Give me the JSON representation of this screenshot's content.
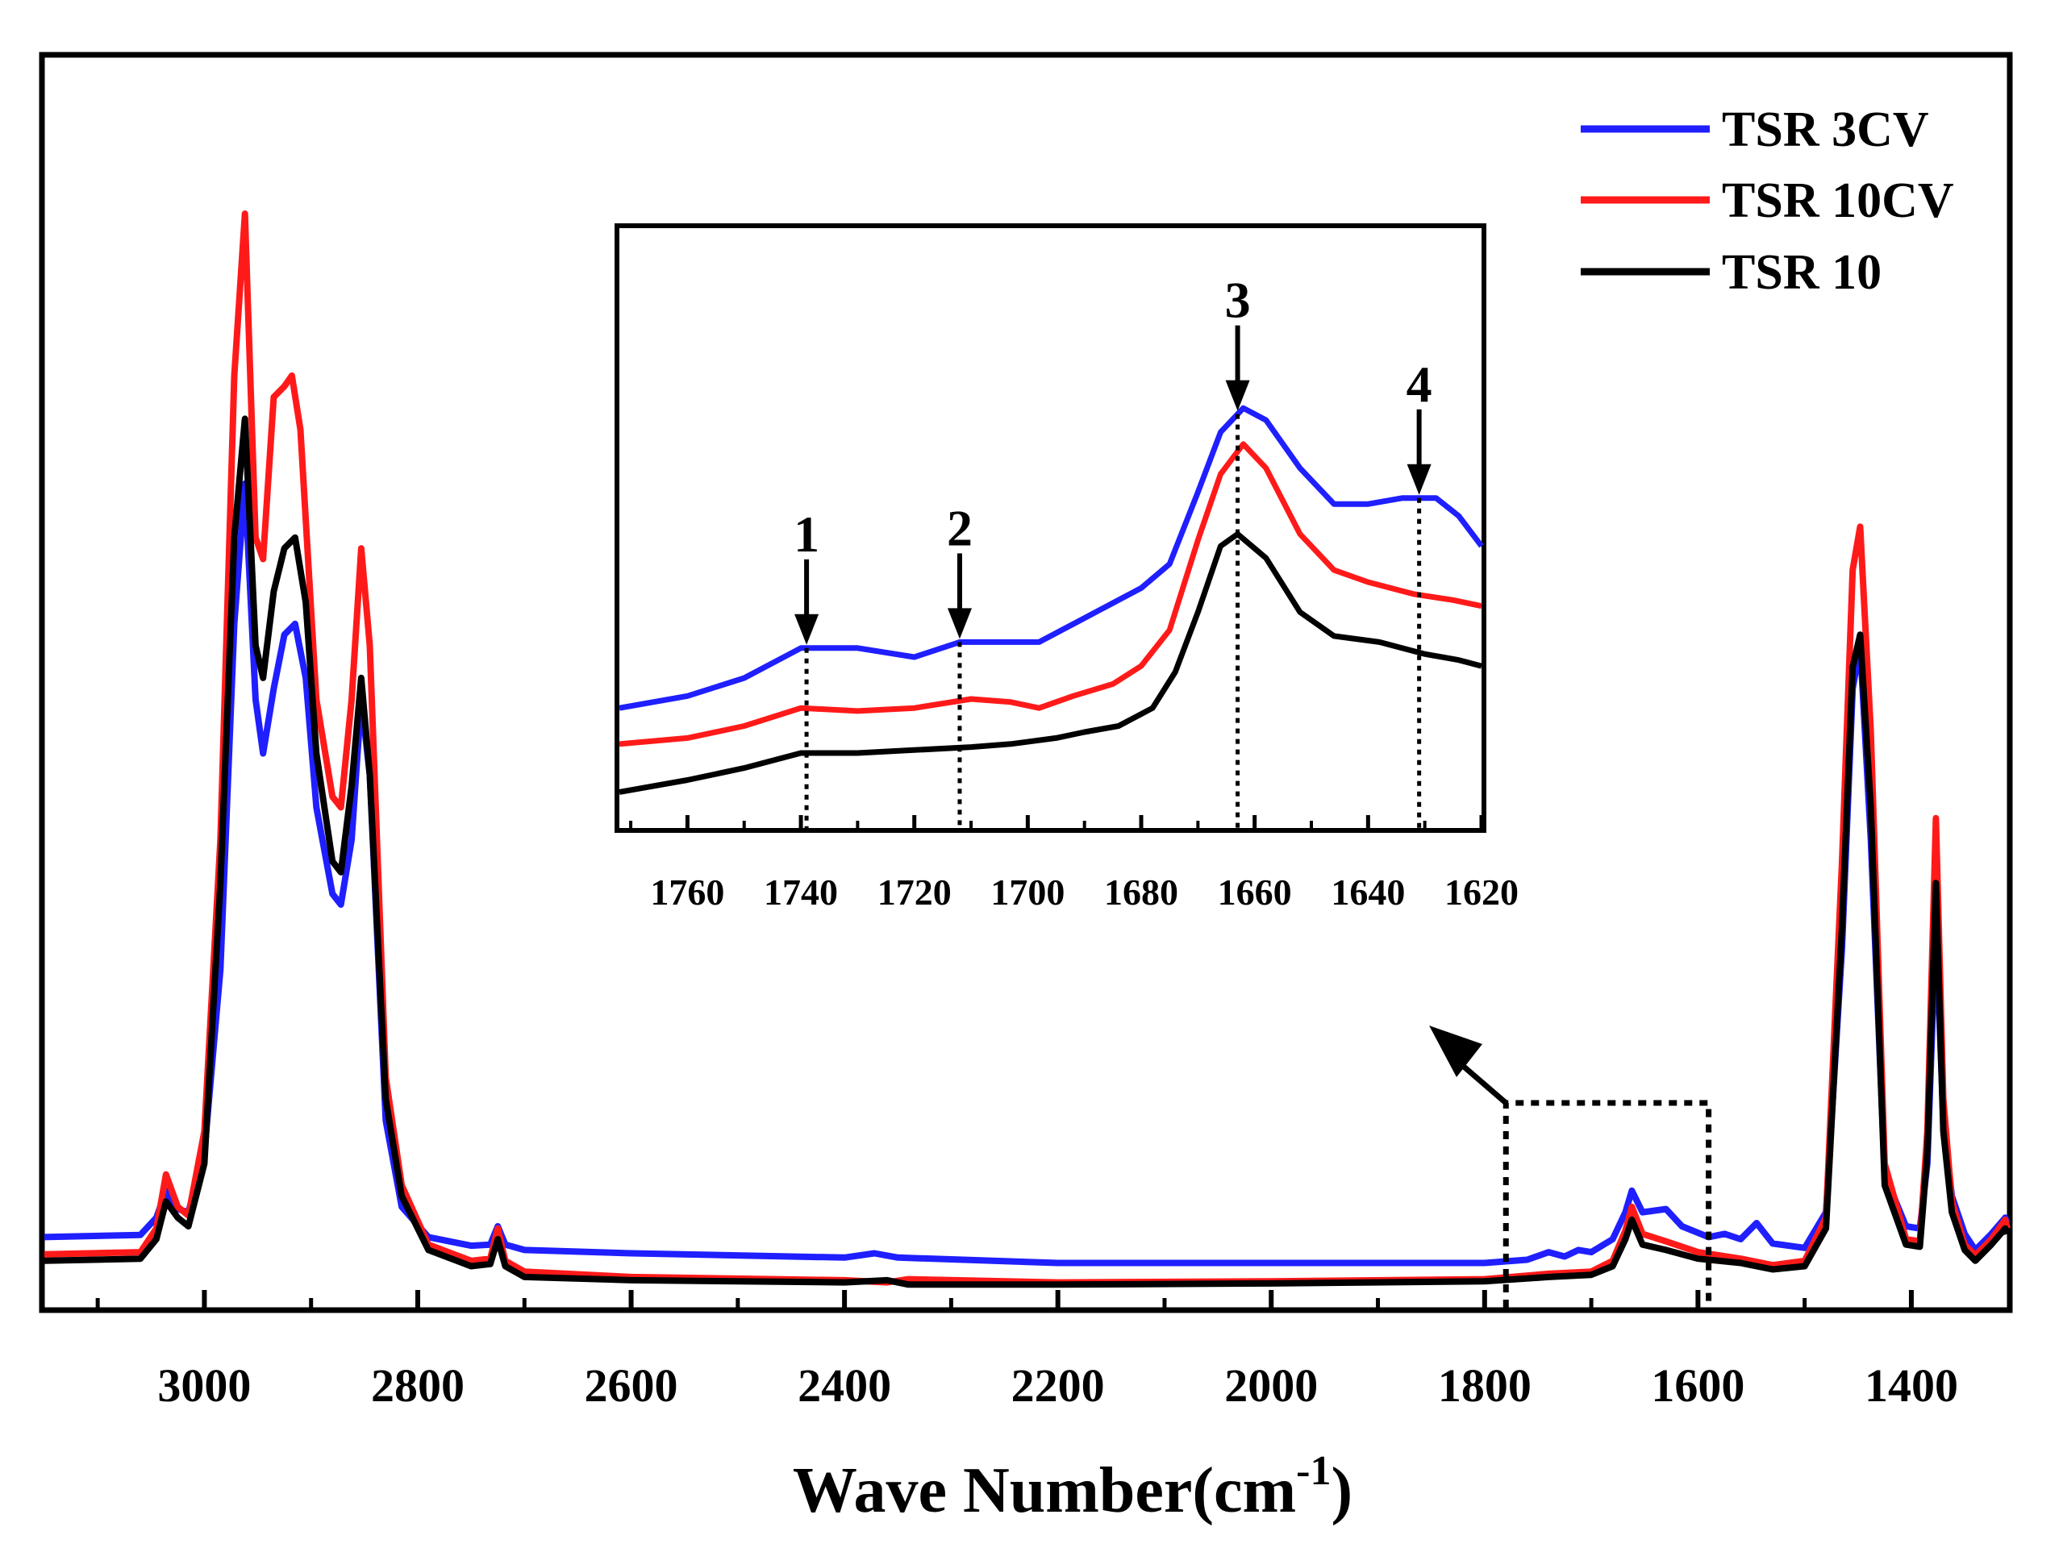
{
  "chart_data": {
    "type": "line",
    "title": "",
    "xlabel": "Wave Number",
    "xlabel_unit": "cm",
    "xlabel_exponent": "-1",
    "xlabel_close": ")",
    "xlabel_open": "(",
    "ylabel": "",
    "x_reversed": true,
    "xlim": [
      3150,
      1310
    ],
    "ylim": [
      0,
      1.0
    ],
    "xticks": [
      3000,
      2800,
      2600,
      2400,
      2200,
      2000,
      1800,
      1600,
      1400
    ],
    "legend": {
      "position": "top-right",
      "entries": [
        "TSR 3CV",
        "TSR 10CV",
        "TSR 10"
      ]
    },
    "colors": {
      "TSR 3CV": "#1f1fff",
      "TSR 10CV": "#ff1a1a",
      "TSR 10": "#000000"
    },
    "series": [
      {
        "name": "TSR 3CV",
        "color": "#1f1fff",
        "points": [
          [
            3150,
            0.052
          ],
          [
            3060,
            0.054
          ],
          [
            3045,
            0.07
          ],
          [
            3036,
            0.095
          ],
          [
            3025,
            0.078
          ],
          [
            3015,
            0.075
          ],
          [
            3000,
            0.13
          ],
          [
            2985,
            0.3
          ],
          [
            2972,
            0.62
          ],
          [
            2962,
            0.75
          ],
          [
            2952,
            0.55
          ],
          [
            2945,
            0.5
          ],
          [
            2935,
            0.56
          ],
          [
            2925,
            0.61
          ],
          [
            2915,
            0.62
          ],
          [
            2905,
            0.57
          ],
          [
            2895,
            0.45
          ],
          [
            2880,
            0.37
          ],
          [
            2872,
            0.36
          ],
          [
            2862,
            0.42
          ],
          [
            2853,
            0.55
          ],
          [
            2845,
            0.48
          ],
          [
            2830,
            0.16
          ],
          [
            2815,
            0.08
          ],
          [
            2790,
            0.052
          ],
          [
            2750,
            0.044
          ],
          [
            2732,
            0.045
          ],
          [
            2725,
            0.062
          ],
          [
            2718,
            0.045
          ],
          [
            2700,
            0.04
          ],
          [
            2600,
            0.037
          ],
          [
            2400,
            0.033
          ],
          [
            2372,
            0.037
          ],
          [
            2350,
            0.033
          ],
          [
            2200,
            0.028
          ],
          [
            2000,
            0.028
          ],
          [
            1800,
            0.028
          ],
          [
            1760,
            0.031
          ],
          [
            1740,
            0.038
          ],
          [
            1725,
            0.034
          ],
          [
            1712,
            0.04
          ],
          [
            1700,
            0.038
          ],
          [
            1680,
            0.05
          ],
          [
            1668,
            0.075
          ],
          [
            1662,
            0.095
          ],
          [
            1652,
            0.075
          ],
          [
            1630,
            0.078
          ],
          [
            1615,
            0.062
          ],
          [
            1590,
            0.052
          ],
          [
            1575,
            0.055
          ],
          [
            1560,
            0.05
          ],
          [
            1545,
            0.065
          ],
          [
            1530,
            0.046
          ],
          [
            1500,
            0.042
          ],
          [
            1480,
            0.075
          ],
          [
            1465,
            0.32
          ],
          [
            1455,
            0.56
          ],
          [
            1448,
            0.6
          ],
          [
            1438,
            0.42
          ],
          [
            1425,
            0.11
          ],
          [
            1405,
            0.062
          ],
          [
            1392,
            0.06
          ],
          [
            1385,
            0.12
          ],
          [
            1377,
            0.34
          ],
          [
            1370,
            0.16
          ],
          [
            1362,
            0.09
          ],
          [
            1350,
            0.055
          ],
          [
            1340,
            0.04
          ],
          [
            1325,
            0.055
          ],
          [
            1312,
            0.07
          ],
          [
            1310,
            0.065
          ]
        ]
      },
      {
        "name": "TSR 10CV",
        "color": "#ff1a1a",
        "points": [
          [
            3150,
            0.036
          ],
          [
            3060,
            0.038
          ],
          [
            3045,
            0.06
          ],
          [
            3036,
            0.11
          ],
          [
            3025,
            0.08
          ],
          [
            3015,
            0.072
          ],
          [
            3000,
            0.15
          ],
          [
            2985,
            0.42
          ],
          [
            2972,
            0.85
          ],
          [
            2962,
            1.0
          ],
          [
            2952,
            0.7
          ],
          [
            2945,
            0.68
          ],
          [
            2935,
            0.83
          ],
          [
            2925,
            0.84
          ],
          [
            2918,
            0.85
          ],
          [
            2910,
            0.8
          ],
          [
            2895,
            0.55
          ],
          [
            2880,
            0.46
          ],
          [
            2872,
            0.45
          ],
          [
            2862,
            0.55
          ],
          [
            2853,
            0.69
          ],
          [
            2845,
            0.6
          ],
          [
            2830,
            0.2
          ],
          [
            2815,
            0.1
          ],
          [
            2790,
            0.045
          ],
          [
            2750,
            0.03
          ],
          [
            2732,
            0.032
          ],
          [
            2725,
            0.06
          ],
          [
            2718,
            0.03
          ],
          [
            2700,
            0.02
          ],
          [
            2600,
            0.015
          ],
          [
            2400,
            0.012
          ],
          [
            2360,
            0.01
          ],
          [
            2340,
            0.013
          ],
          [
            2200,
            0.01
          ],
          [
            2000,
            0.011
          ],
          [
            1800,
            0.013
          ],
          [
            1740,
            0.018
          ],
          [
            1700,
            0.02
          ],
          [
            1680,
            0.03
          ],
          [
            1668,
            0.058
          ],
          [
            1662,
            0.08
          ],
          [
            1652,
            0.055
          ],
          [
            1630,
            0.048
          ],
          [
            1600,
            0.038
          ],
          [
            1560,
            0.032
          ],
          [
            1530,
            0.026
          ],
          [
            1500,
            0.03
          ],
          [
            1480,
            0.07
          ],
          [
            1465,
            0.4
          ],
          [
            1455,
            0.67
          ],
          [
            1448,
            0.71
          ],
          [
            1438,
            0.52
          ],
          [
            1425,
            0.12
          ],
          [
            1405,
            0.05
          ],
          [
            1392,
            0.048
          ],
          [
            1385,
            0.15
          ],
          [
            1377,
            0.44
          ],
          [
            1370,
            0.18
          ],
          [
            1362,
            0.085
          ],
          [
            1350,
            0.045
          ],
          [
            1340,
            0.035
          ],
          [
            1325,
            0.05
          ],
          [
            1312,
            0.068
          ],
          [
            1310,
            0.06
          ]
        ]
      },
      {
        "name": "TSR 10",
        "color": "#000000",
        "points": [
          [
            3150,
            0.03
          ],
          [
            3060,
            0.032
          ],
          [
            3045,
            0.05
          ],
          [
            3036,
            0.085
          ],
          [
            3025,
            0.07
          ],
          [
            3015,
            0.062
          ],
          [
            3000,
            0.12
          ],
          [
            2985,
            0.38
          ],
          [
            2972,
            0.7
          ],
          [
            2962,
            0.81
          ],
          [
            2952,
            0.6
          ],
          [
            2945,
            0.57
          ],
          [
            2935,
            0.65
          ],
          [
            2925,
            0.69
          ],
          [
            2915,
            0.7
          ],
          [
            2905,
            0.64
          ],
          [
            2895,
            0.5
          ],
          [
            2880,
            0.4
          ],
          [
            2872,
            0.39
          ],
          [
            2862,
            0.47
          ],
          [
            2853,
            0.57
          ],
          [
            2845,
            0.48
          ],
          [
            2830,
            0.18
          ],
          [
            2815,
            0.09
          ],
          [
            2790,
            0.04
          ],
          [
            2750,
            0.025
          ],
          [
            2732,
            0.027
          ],
          [
            2725,
            0.05
          ],
          [
            2718,
            0.025
          ],
          [
            2700,
            0.015
          ],
          [
            2600,
            0.012
          ],
          [
            2400,
            0.01
          ],
          [
            2360,
            0.012
          ],
          [
            2340,
            0.008
          ],
          [
            2200,
            0.008
          ],
          [
            2000,
            0.009
          ],
          [
            1800,
            0.011
          ],
          [
            1740,
            0.015
          ],
          [
            1700,
            0.017
          ],
          [
            1680,
            0.025
          ],
          [
            1668,
            0.05
          ],
          [
            1662,
            0.068
          ],
          [
            1652,
            0.045
          ],
          [
            1630,
            0.04
          ],
          [
            1600,
            0.032
          ],
          [
            1560,
            0.028
          ],
          [
            1530,
            0.022
          ],
          [
            1500,
            0.025
          ],
          [
            1480,
            0.06
          ],
          [
            1465,
            0.34
          ],
          [
            1455,
            0.58
          ],
          [
            1448,
            0.61
          ],
          [
            1438,
            0.45
          ],
          [
            1425,
            0.1
          ],
          [
            1405,
            0.045
          ],
          [
            1392,
            0.043
          ],
          [
            1385,
            0.13
          ],
          [
            1377,
            0.38
          ],
          [
            1370,
            0.15
          ],
          [
            1362,
            0.075
          ],
          [
            1350,
            0.04
          ],
          [
            1340,
            0.03
          ],
          [
            1325,
            0.045
          ],
          [
            1312,
            0.06
          ],
          [
            1310,
            0.055
          ]
        ]
      }
    ],
    "inset": {
      "xlim": [
        1772,
        1620
      ],
      "ylim": [
        0,
        1.0
      ],
      "xticks": [
        1760,
        1740,
        1720,
        1700,
        1680,
        1660,
        1640,
        1620
      ],
      "series": [
        {
          "name": "TSR 3CV",
          "color": "#1f1fff",
          "points": [
            [
              1772,
              0.2
            ],
            [
              1760,
              0.22
            ],
            [
              1750,
              0.25
            ],
            [
              1740,
              0.3
            ],
            [
              1730,
              0.3
            ],
            [
              1720,
              0.285
            ],
            [
              1712,
              0.31
            ],
            [
              1705,
              0.31
            ],
            [
              1698,
              0.31
            ],
            [
              1690,
              0.35
            ],
            [
              1680,
              0.4
            ],
            [
              1675,
              0.44
            ],
            [
              1670,
              0.56
            ],
            [
              1666,
              0.66
            ],
            [
              1662,
              0.7
            ],
            [
              1658,
              0.68
            ],
            [
              1652,
              0.6
            ],
            [
              1646,
              0.54
            ],
            [
              1640,
              0.54
            ],
            [
              1634,
              0.55
            ],
            [
              1628,
              0.55
            ],
            [
              1624,
              0.52
            ],
            [
              1620,
              0.47
            ]
          ]
        },
        {
          "name": "TSR 10CV",
          "color": "#ff1a1a",
          "points": [
            [
              1772,
              0.14
            ],
            [
              1760,
              0.15
            ],
            [
              1750,
              0.17
            ],
            [
              1740,
              0.2
            ],
            [
              1730,
              0.195
            ],
            [
              1720,
              0.2
            ],
            [
              1710,
              0.215
            ],
            [
              1703,
              0.21
            ],
            [
              1698,
              0.2
            ],
            [
              1692,
              0.22
            ],
            [
              1685,
              0.24
            ],
            [
              1680,
              0.27
            ],
            [
              1675,
              0.33
            ],
            [
              1670,
              0.48
            ],
            [
              1666,
              0.59
            ],
            [
              1662,
              0.64
            ],
            [
              1658,
              0.6
            ],
            [
              1652,
              0.49
            ],
            [
              1646,
              0.43
            ],
            [
              1640,
              0.41
            ],
            [
              1632,
              0.39
            ],
            [
              1625,
              0.38
            ],
            [
              1620,
              0.37
            ]
          ]
        },
        {
          "name": "TSR 10",
          "color": "#000000",
          "points": [
            [
              1772,
              0.06
            ],
            [
              1760,
              0.08
            ],
            [
              1750,
              0.1
            ],
            [
              1740,
              0.125
            ],
            [
              1730,
              0.125
            ],
            [
              1720,
              0.13
            ],
            [
              1710,
              0.135
            ],
            [
              1703,
              0.14
            ],
            [
              1695,
              0.15
            ],
            [
              1690,
              0.16
            ],
            [
              1684,
              0.17
            ],
            [
              1678,
              0.2
            ],
            [
              1674,
              0.26
            ],
            [
              1670,
              0.36
            ],
            [
              1666,
              0.47
            ],
            [
              1663,
              0.49
            ],
            [
              1658,
              0.45
            ],
            [
              1652,
              0.36
            ],
            [
              1646,
              0.32
            ],
            [
              1638,
              0.31
            ],
            [
              1630,
              0.29
            ],
            [
              1624,
              0.28
            ],
            [
              1620,
              0.27
            ]
          ]
        }
      ],
      "markers": [
        {
          "label": "1",
          "x": 1739
        },
        {
          "label": "2",
          "x": 1712
        },
        {
          "label": "3",
          "x": 1663
        },
        {
          "label": "4",
          "x": 1631
        }
      ]
    },
    "zoom_region": {
      "x_from": 1780,
      "x_to": 1590
    }
  }
}
